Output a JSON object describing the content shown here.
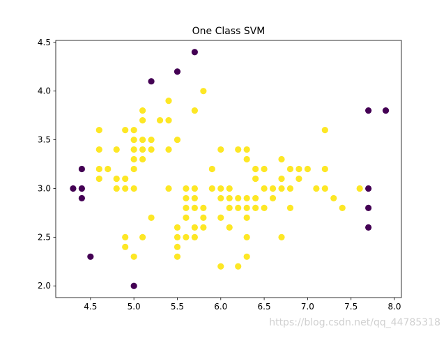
{
  "chart_data": {
    "type": "scatter",
    "title": "One Class SVM",
    "xlabel": "",
    "ylabel": "",
    "xlim": [
      4.1,
      8.08
    ],
    "ylim": [
      1.88,
      4.52
    ],
    "xticks": [
      4.5,
      5.0,
      5.5,
      6.0,
      6.5,
      7.0,
      7.5,
      8.0
    ],
    "yticks": [
      2.0,
      2.5,
      3.0,
      3.5,
      4.0,
      4.5
    ],
    "grid": false,
    "legend": "none",
    "series": [
      {
        "color": "#fde725",
        "points": [
          [
            4.6,
            3.6
          ],
          [
            4.6,
            3.4
          ],
          [
            4.6,
            3.2
          ],
          [
            4.6,
            3.1
          ],
          [
            4.7,
            3.2
          ],
          [
            4.8,
            3.4
          ],
          [
            4.8,
            3.1
          ],
          [
            4.8,
            3.0
          ],
          [
            4.9,
            3.6
          ],
          [
            4.9,
            3.1
          ],
          [
            4.9,
            3.0
          ],
          [
            4.9,
            2.5
          ],
          [
            4.9,
            2.4
          ],
          [
            5.0,
            3.6
          ],
          [
            5.0,
            3.5
          ],
          [
            5.0,
            3.4
          ],
          [
            5.0,
            3.3
          ],
          [
            5.0,
            3.2
          ],
          [
            5.0,
            3.0
          ],
          [
            5.0,
            2.3
          ],
          [
            5.1,
            3.8
          ],
          [
            5.1,
            3.7
          ],
          [
            5.1,
            3.5
          ],
          [
            5.1,
            3.4
          ],
          [
            5.1,
            3.3
          ],
          [
            5.1,
            2.5
          ],
          [
            5.2,
            3.5
          ],
          [
            5.2,
            3.4
          ],
          [
            5.2,
            2.7
          ],
          [
            5.3,
            3.7
          ],
          [
            5.4,
            3.9
          ],
          [
            5.4,
            3.7
          ],
          [
            5.4,
            3.4
          ],
          [
            5.4,
            3.0
          ],
          [
            5.5,
            3.5
          ],
          [
            5.5,
            2.6
          ],
          [
            5.5,
            2.5
          ],
          [
            5.5,
            2.4
          ],
          [
            5.5,
            2.3
          ],
          [
            5.6,
            3.0
          ],
          [
            5.6,
            2.9
          ],
          [
            5.6,
            2.8
          ],
          [
            5.6,
            2.7
          ],
          [
            5.6,
            2.5
          ],
          [
            5.7,
            3.8
          ],
          [
            5.7,
            3.0
          ],
          [
            5.7,
            2.9
          ],
          [
            5.7,
            2.8
          ],
          [
            5.7,
            2.6
          ],
          [
            5.7,
            2.5
          ],
          [
            5.8,
            4.0
          ],
          [
            5.8,
            2.8
          ],
          [
            5.8,
            2.7
          ],
          [
            5.8,
            2.6
          ],
          [
            5.9,
            3.2
          ],
          [
            5.9,
            3.0
          ],
          [
            6.0,
            3.4
          ],
          [
            6.0,
            3.0
          ],
          [
            6.0,
            2.9
          ],
          [
            6.0,
            2.7
          ],
          [
            6.0,
            2.2
          ],
          [
            6.1,
            3.0
          ],
          [
            6.1,
            2.9
          ],
          [
            6.1,
            2.8
          ],
          [
            6.1,
            2.6
          ],
          [
            6.2,
            3.4
          ],
          [
            6.2,
            2.9
          ],
          [
            6.2,
            2.8
          ],
          [
            6.2,
            2.2
          ],
          [
            6.3,
            3.4
          ],
          [
            6.3,
            3.3
          ],
          [
            6.3,
            2.9
          ],
          [
            6.3,
            2.8
          ],
          [
            6.3,
            2.7
          ],
          [
            6.3,
            2.5
          ],
          [
            6.3,
            2.3
          ],
          [
            6.4,
            3.2
          ],
          [
            6.4,
            3.1
          ],
          [
            6.4,
            2.9
          ],
          [
            6.4,
            2.8
          ],
          [
            6.5,
            3.2
          ],
          [
            6.5,
            3.0
          ],
          [
            6.5,
            2.8
          ],
          [
            6.6,
            3.0
          ],
          [
            6.6,
            2.9
          ],
          [
            6.7,
            3.3
          ],
          [
            6.7,
            3.1
          ],
          [
            6.7,
            3.0
          ],
          [
            6.7,
            2.5
          ],
          [
            6.8,
            3.2
          ],
          [
            6.8,
            3.0
          ],
          [
            6.8,
            2.8
          ],
          [
            6.9,
            3.2
          ],
          [
            6.9,
            3.1
          ],
          [
            7.0,
            3.2
          ],
          [
            7.1,
            3.0
          ],
          [
            7.2,
            3.6
          ],
          [
            7.2,
            3.2
          ],
          [
            7.2,
            3.0
          ],
          [
            7.3,
            2.9
          ],
          [
            7.4,
            2.8
          ],
          [
            7.6,
            3.0
          ]
        ]
      },
      {
        "color": "#440154",
        "points": [
          [
            4.3,
            3.0
          ],
          [
            4.4,
            3.2
          ],
          [
            4.4,
            3.0
          ],
          [
            4.4,
            2.9
          ],
          [
            4.5,
            2.3
          ],
          [
            5.0,
            2.0
          ],
          [
            5.2,
            4.1
          ],
          [
            5.5,
            4.2
          ],
          [
            5.7,
            4.4
          ],
          [
            7.7,
            3.8
          ],
          [
            7.7,
            3.0
          ],
          [
            7.7,
            2.8
          ],
          [
            7.7,
            2.6
          ],
          [
            7.9,
            3.8
          ]
        ]
      }
    ]
  },
  "watermark": "https://blog.csdn.net/qq_44785318"
}
